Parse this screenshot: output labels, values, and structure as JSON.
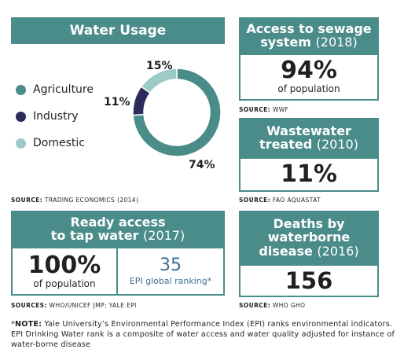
{
  "water_usage": {
    "title": "Water Usage",
    "legend": [
      {
        "label": "Agriculture",
        "color": "#4a8c8a"
      },
      {
        "label": "Industry",
        "color": "#2d2a5e"
      },
      {
        "label": "Domestic",
        "color": "#9ccbc7"
      }
    ],
    "labels": {
      "agriculture": "74%",
      "industry": "11%",
      "domestic": "15%"
    },
    "source": "TRADING ECONOMICS (2014)",
    "source_prefix": "SOURCE:"
  },
  "sewage": {
    "title_line1": "Access to sewage",
    "title_line2": "system",
    "year": "(2018)",
    "value": "94%",
    "caption": "of population",
    "source_prefix": "SOURCE:",
    "source": "WWF"
  },
  "wastewater": {
    "title_line1": "Wastewater",
    "title_line2": "treated",
    "year": "(2010)",
    "value": "11%",
    "source_prefix": "SOURCE:",
    "source": "FAO AQUASTAT"
  },
  "tap_water": {
    "title_line1": "Ready access",
    "title_line2": "to tap water",
    "year": "(2017)",
    "value": "100%",
    "caption": "of population",
    "epi_value": "35",
    "epi_caption": "EPI global ranking*",
    "source_prefix": "SOURCES:",
    "source": "WHO/UNICEF JMP; YALE EPI"
  },
  "deaths": {
    "title_line1": "Deaths by",
    "title_line2": "waterborne",
    "title_line3": "disease",
    "year": "(2016)",
    "value": "156",
    "source_prefix": "SOURCE:",
    "source": "WHO GHO"
  },
  "note": {
    "label": "NOTE:",
    "text": "Yale University’s Environmental Performance Index (EPI) ranks environmental indicators. EPI Drinking Water rank is a composite of water access and water quality adjusted for instance of water-borne disease"
  },
  "colors": {
    "teal": "#4a8c8a",
    "navy": "#2d2a5e",
    "light_teal": "#9ccbc7",
    "epi_blue": "#3d6f93"
  },
  "chart_data": {
    "type": "pie",
    "categories": [
      "Agriculture",
      "Industry",
      "Domestic"
    ],
    "values": [
      74,
      11,
      15
    ]
  }
}
